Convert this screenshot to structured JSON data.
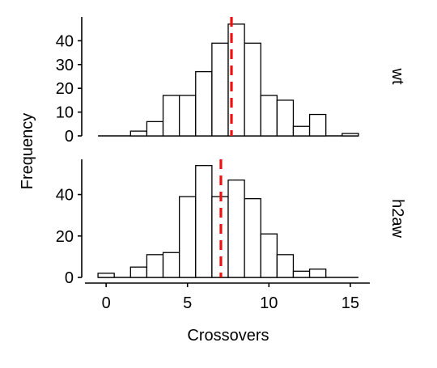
{
  "chart_data": {
    "type": "bar",
    "subtype": "faceted-histogram",
    "xlabel": "Crossovers",
    "ylabel": "Frequency",
    "xlim": [
      -1.2,
      16.2
    ],
    "xticks": [
      0,
      5,
      10,
      15
    ],
    "bin_width": 1,
    "bar_fill": "#ffffff",
    "bar_stroke": "#000000",
    "mean_line_color": "#ee1111",
    "panels": [
      {
        "strip_label": "wt",
        "ylim": [
          0,
          50
        ],
        "yticks": [
          0,
          10,
          20,
          30,
          40
        ],
        "bins": [
          0,
          1,
          2,
          3,
          4,
          5,
          6,
          7,
          8,
          9,
          10,
          11,
          12,
          13,
          14,
          15
        ],
        "counts": [
          0,
          0,
          2,
          6,
          17,
          17,
          27,
          39,
          47,
          39,
          17,
          15,
          4,
          9,
          0,
          1
        ],
        "mean": 7.7
      },
      {
        "strip_label": "h2aw",
        "ylim": [
          0,
          57
        ],
        "yticks": [
          0,
          20,
          40
        ],
        "bins": [
          0,
          1,
          2,
          3,
          4,
          5,
          6,
          7,
          8,
          9,
          10,
          11,
          12,
          13,
          14,
          15
        ],
        "counts": [
          2,
          0,
          5,
          11,
          12,
          39,
          54,
          39,
          47,
          38,
          21,
          11,
          3,
          4,
          0,
          0
        ],
        "mean": 7.05
      }
    ]
  }
}
